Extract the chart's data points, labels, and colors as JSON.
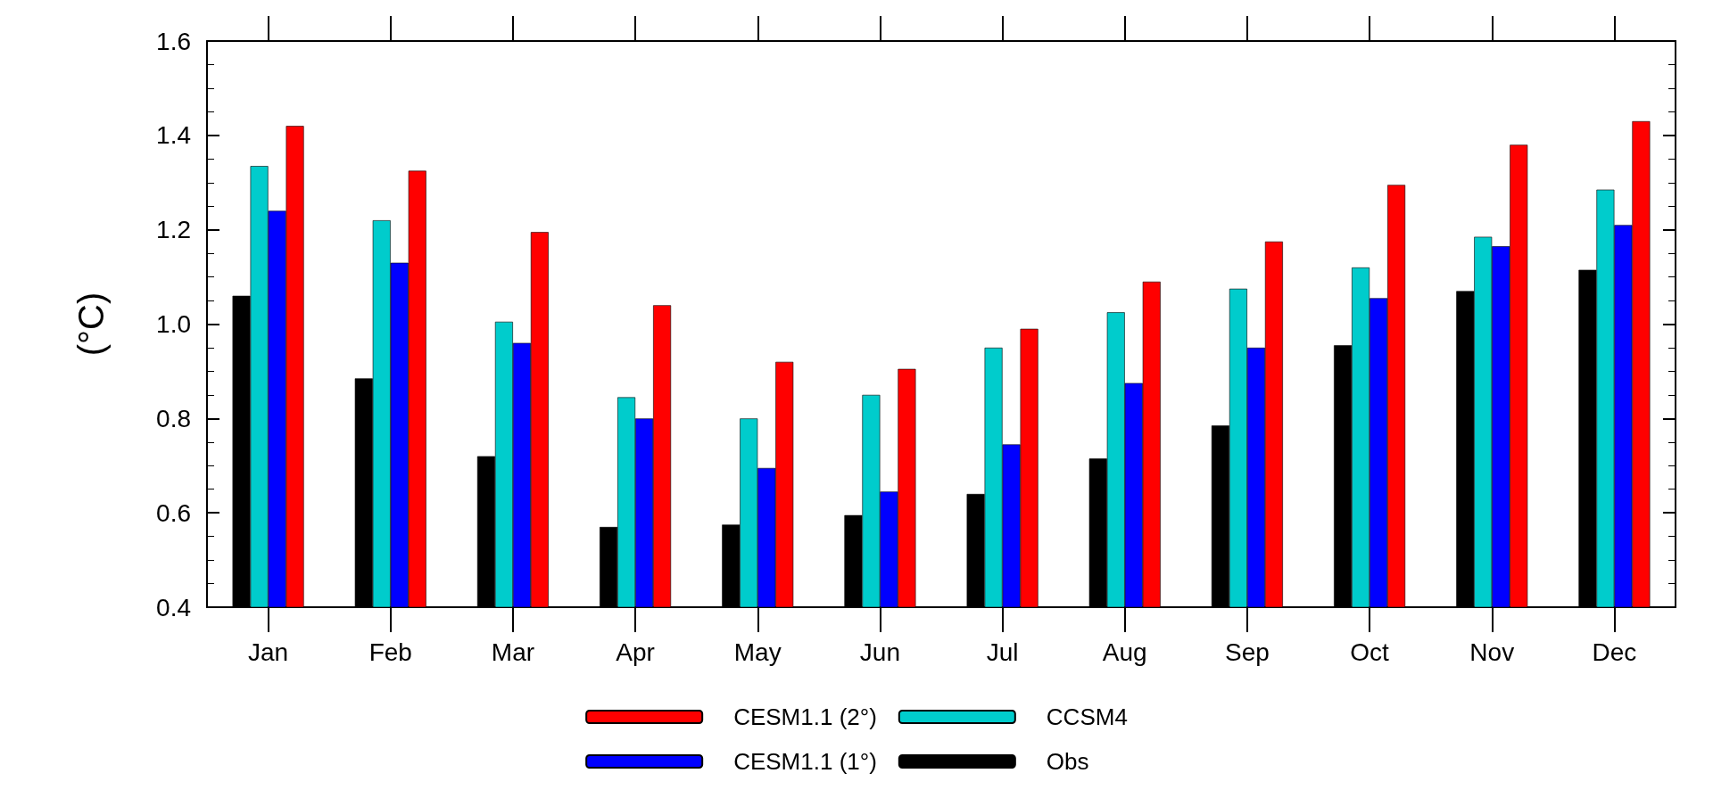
{
  "chart_data": {
    "type": "bar",
    "ylabel": "(°C)",
    "categories": [
      "Jan",
      "Feb",
      "Mar",
      "Apr",
      "May",
      "Jun",
      "Jul",
      "Aug",
      "Sep",
      "Oct",
      "Nov",
      "Dec"
    ],
    "series": [
      {
        "name": "Obs",
        "color": "#000000",
        "values": [
          1.06,
          0.885,
          0.72,
          0.57,
          0.575,
          0.595,
          0.64,
          0.715,
          0.785,
          0.955,
          1.07,
          1.115
        ]
      },
      {
        "name": "CCSM4",
        "color": "#00cccc",
        "values": [
          1.335,
          1.22,
          1.005,
          0.845,
          0.8,
          0.85,
          0.95,
          1.025,
          1.075,
          1.12,
          1.185,
          1.285
        ]
      },
      {
        "name": "CESM1.1 (1°)",
        "color": "#0000ff",
        "values": [
          1.24,
          1.13,
          0.96,
          0.8,
          0.695,
          0.645,
          0.745,
          0.875,
          0.95,
          1.055,
          1.165,
          1.21
        ]
      },
      {
        "name": "CESM1.1 (2°)",
        "color": "#ff0000",
        "values": [
          1.42,
          1.325,
          1.195,
          1.04,
          0.92,
          0.905,
          0.99,
          1.09,
          1.175,
          1.295,
          1.38,
          1.43
        ]
      }
    ],
    "ylim": [
      0.4,
      1.6
    ],
    "yticks": [
      {
        "value": 0.4,
        "label": "0.4"
      },
      {
        "value": 0.6,
        "label": "0.6"
      },
      {
        "value": 0.8,
        "label": "0.8"
      },
      {
        "value": 1,
        "label": "1.0"
      },
      {
        "value": 1.2,
        "label": "1.2"
      },
      {
        "value": 1.4,
        "label": "1.4"
      },
      {
        "value": 1.6,
        "label": "1.6"
      }
    ],
    "grid": false,
    "legend": "bottom"
  }
}
